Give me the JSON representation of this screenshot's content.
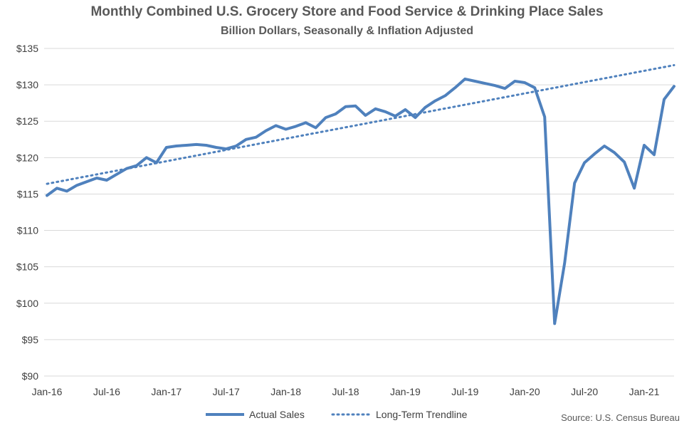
{
  "chart_data": {
    "type": "line",
    "title": "Monthly Combined U.S. Grocery Store and Food Service & Drinking Place Sales",
    "subtitle": "Billion Dollars, Seasonally & Inflation Adjusted",
    "xlabel": "",
    "ylabel": "",
    "ylim": [
      90,
      135
    ],
    "yticks": [
      90,
      95,
      100,
      105,
      110,
      115,
      120,
      125,
      130,
      135
    ],
    "ytick_labels": [
      "$90",
      "$95",
      "$100",
      "$105",
      "$110",
      "$115",
      "$120",
      "$125",
      "$130",
      "$135"
    ],
    "x": [
      "Jan-16",
      "Feb-16",
      "Mar-16",
      "Apr-16",
      "May-16",
      "Jun-16",
      "Jul-16",
      "Aug-16",
      "Sep-16",
      "Oct-16",
      "Nov-16",
      "Dec-16",
      "Jan-17",
      "Feb-17",
      "Mar-17",
      "Apr-17",
      "May-17",
      "Jun-17",
      "Jul-17",
      "Aug-17",
      "Sep-17",
      "Oct-17",
      "Nov-17",
      "Dec-17",
      "Jan-18",
      "Feb-18",
      "Mar-18",
      "Apr-18",
      "May-18",
      "Jun-18",
      "Jul-18",
      "Aug-18",
      "Sep-18",
      "Oct-18",
      "Nov-18",
      "Dec-18",
      "Jan-19",
      "Feb-19",
      "Mar-19",
      "Apr-19",
      "May-19",
      "Jun-19",
      "Jul-19",
      "Aug-19",
      "Sep-19",
      "Oct-19",
      "Nov-19",
      "Dec-19",
      "Jan-20",
      "Feb-20",
      "Mar-20",
      "Apr-20",
      "May-20",
      "Jun-20",
      "Jul-20",
      "Aug-20",
      "Sep-20",
      "Oct-20",
      "Nov-20",
      "Dec-20",
      "Jan-21",
      "Feb-21",
      "Mar-21",
      "Apr-21"
    ],
    "xtick_labels": [
      "Jan-16",
      "Jul-16",
      "Jan-17",
      "Jul-17",
      "Jan-18",
      "Jul-18",
      "Jan-19",
      "Jul-19",
      "Jan-20",
      "Jul-20",
      "Jan-21"
    ],
    "series": [
      {
        "name": "Actual Sales",
        "style": "solid",
        "color": "#4f81bd",
        "values": [
          114.8,
          115.8,
          115.4,
          116.2,
          116.7,
          117.2,
          116.9,
          117.7,
          118.5,
          118.9,
          120.0,
          119.3,
          121.4,
          121.6,
          121.7,
          121.8,
          121.7,
          121.4,
          121.2,
          121.6,
          122.5,
          122.8,
          123.7,
          124.4,
          123.9,
          124.3,
          124.8,
          124.1,
          125.5,
          126.0,
          127.0,
          127.1,
          125.8,
          126.7,
          126.3,
          125.7,
          126.6,
          125.5,
          126.9,
          127.8,
          128.5,
          129.6,
          130.8,
          130.5,
          130.2,
          129.9,
          129.5,
          130.5,
          130.3,
          129.6,
          125.6,
          97.2,
          105.5,
          116.5,
          119.3,
          120.5,
          121.6,
          120.7,
          119.4,
          115.8,
          121.7,
          120.4,
          128.0,
          129.8
        ]
      },
      {
        "name": "Long-Term Trendline",
        "style": "dotted",
        "color": "#4f81bd",
        "start": 116.4,
        "end": 132.7
      }
    ],
    "grid": true,
    "legend_position": "bottom",
    "annotation": "Source: U.S. Census Bureau"
  }
}
